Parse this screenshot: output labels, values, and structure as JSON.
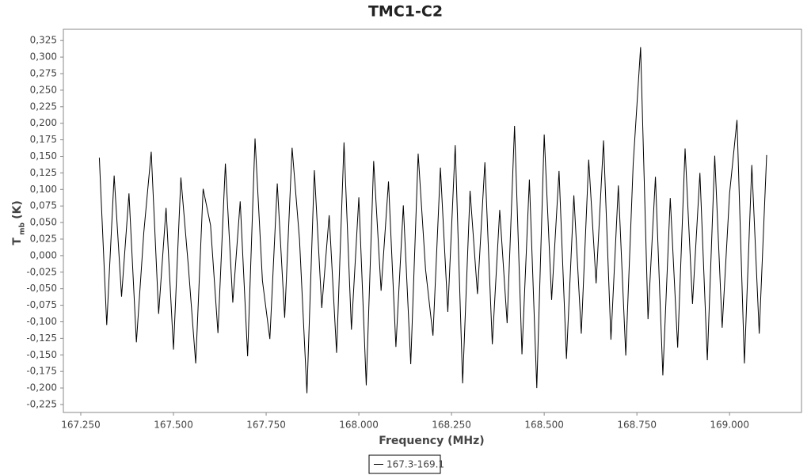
{
  "chart_data": {
    "type": "line",
    "title": "TMC1-C2",
    "x_label": "Frequency (MHz)",
    "y_label": "T",
    "y_label_sub": "mb",
    "y_label_unit": "(K)",
    "x": [
      167.3,
      167.32,
      167.34,
      167.36,
      167.38,
      167.4,
      167.42,
      167.44,
      167.46,
      167.48,
      167.5,
      167.52,
      167.54,
      167.56,
      167.58,
      167.6,
      167.62,
      167.64,
      167.66,
      167.68,
      167.7,
      167.72,
      167.74,
      167.76,
      167.78,
      167.8,
      167.82,
      167.84,
      167.86,
      167.88,
      167.9,
      167.92,
      167.94,
      167.96,
      167.98,
      168.0,
      168.02,
      168.04,
      168.06,
      168.08,
      168.1,
      168.12,
      168.14,
      168.16,
      168.18,
      168.2,
      168.22,
      168.24,
      168.26,
      168.28,
      168.3,
      168.32,
      168.34,
      168.36,
      168.38,
      168.4,
      168.42,
      168.44,
      168.46,
      168.48,
      168.5,
      168.52,
      168.54,
      168.56,
      168.58,
      168.6,
      168.62,
      168.64,
      168.66,
      168.68,
      168.7,
      168.72,
      168.74,
      168.76,
      168.78,
      168.8,
      168.82,
      168.84,
      168.86,
      168.88,
      168.9,
      168.92,
      168.94,
      168.96,
      168.98,
      169.0,
      169.02,
      169.04,
      169.06,
      169.08,
      169.1
    ],
    "series": [
      {
        "name": "167.3-169.1",
        "color": "#000000",
        "values": [
          0.148,
          -0.105,
          0.121,
          -0.062,
          0.094,
          -0.131,
          0.035,
          0.157,
          -0.088,
          0.072,
          -0.142,
          0.118,
          -0.015,
          -0.163,
          0.101,
          0.046,
          -0.117,
          0.139,
          -0.071,
          0.082,
          -0.152,
          0.177,
          -0.038,
          -0.126,
          0.109,
          -0.094,
          0.163,
          0.024,
          -0.208,
          0.129,
          -0.079,
          0.061,
          -0.147,
          0.171,
          -0.112,
          0.088,
          -0.196,
          0.143,
          -0.053,
          0.112,
          -0.138,
          0.076,
          -0.164,
          0.154,
          -0.021,
          -0.121,
          0.133,
          -0.085,
          0.167,
          -0.193,
          0.098,
          -0.058,
          0.141,
          -0.134,
          0.069,
          -0.102,
          0.196,
          -0.149,
          0.115,
          -0.2,
          0.183,
          -0.067,
          0.128,
          -0.156,
          0.091,
          -0.118,
          0.145,
          -0.042,
          0.174,
          -0.127,
          0.106,
          -0.151,
          0.138,
          0.315,
          -0.096,
          0.119,
          -0.181,
          0.087,
          -0.139,
          0.162,
          -0.073,
          0.125,
          -0.158,
          0.151,
          -0.109,
          0.094,
          0.205,
          -0.163,
          0.137,
          -0.118,
          0.152
        ]
      }
    ],
    "xlim": [
      167.203,
      169.194
    ],
    "ylim": [
      -0.237,
      0.342
    ],
    "xticks": [
      {
        "value": 167.25,
        "label": "167.250"
      },
      {
        "value": 167.5,
        "label": "167.500"
      },
      {
        "value": 167.75,
        "label": "167.750"
      },
      {
        "value": 168,
        "label": "168.000"
      },
      {
        "value": 168.25,
        "label": "168.250"
      },
      {
        "value": 168.5,
        "label": "168.500"
      },
      {
        "value": 168.75,
        "label": "168.750"
      },
      {
        "value": 169,
        "label": "169.000"
      }
    ],
    "yticks": [
      {
        "value": -0.225,
        "label": "-0,225"
      },
      {
        "value": -0.2,
        "label": "-0,200"
      },
      {
        "value": -0.175,
        "label": "-0,175"
      },
      {
        "value": -0.15,
        "label": "-0,150"
      },
      {
        "value": -0.125,
        "label": "-0,125"
      },
      {
        "value": -0.1,
        "label": "-0,100"
      },
      {
        "value": -0.075,
        "label": "-0,075"
      },
      {
        "value": -0.05,
        "label": "-0,050"
      },
      {
        "value": -0.025,
        "label": "-0,025"
      },
      {
        "value": 0,
        "label": "0,000"
      },
      {
        "value": 0.025,
        "label": "0,025"
      },
      {
        "value": 0.05,
        "label": "0,050"
      },
      {
        "value": 0.075,
        "label": "0,075"
      },
      {
        "value": 0.1,
        "label": "0,100"
      },
      {
        "value": 0.125,
        "label": "0,125"
      },
      {
        "value": 0.15,
        "label": "0,150"
      },
      {
        "value": 0.175,
        "label": "0,175"
      },
      {
        "value": 0.2,
        "label": "0,200"
      },
      {
        "value": 0.225,
        "label": "0,225"
      },
      {
        "value": 0.25,
        "label": "0,250"
      },
      {
        "value": 0.275,
        "label": "0,275"
      },
      {
        "value": 0.3,
        "label": "0,300"
      },
      {
        "value": 0.325,
        "label": "0,325"
      }
    ],
    "grid": false,
    "legend": "bottom"
  }
}
